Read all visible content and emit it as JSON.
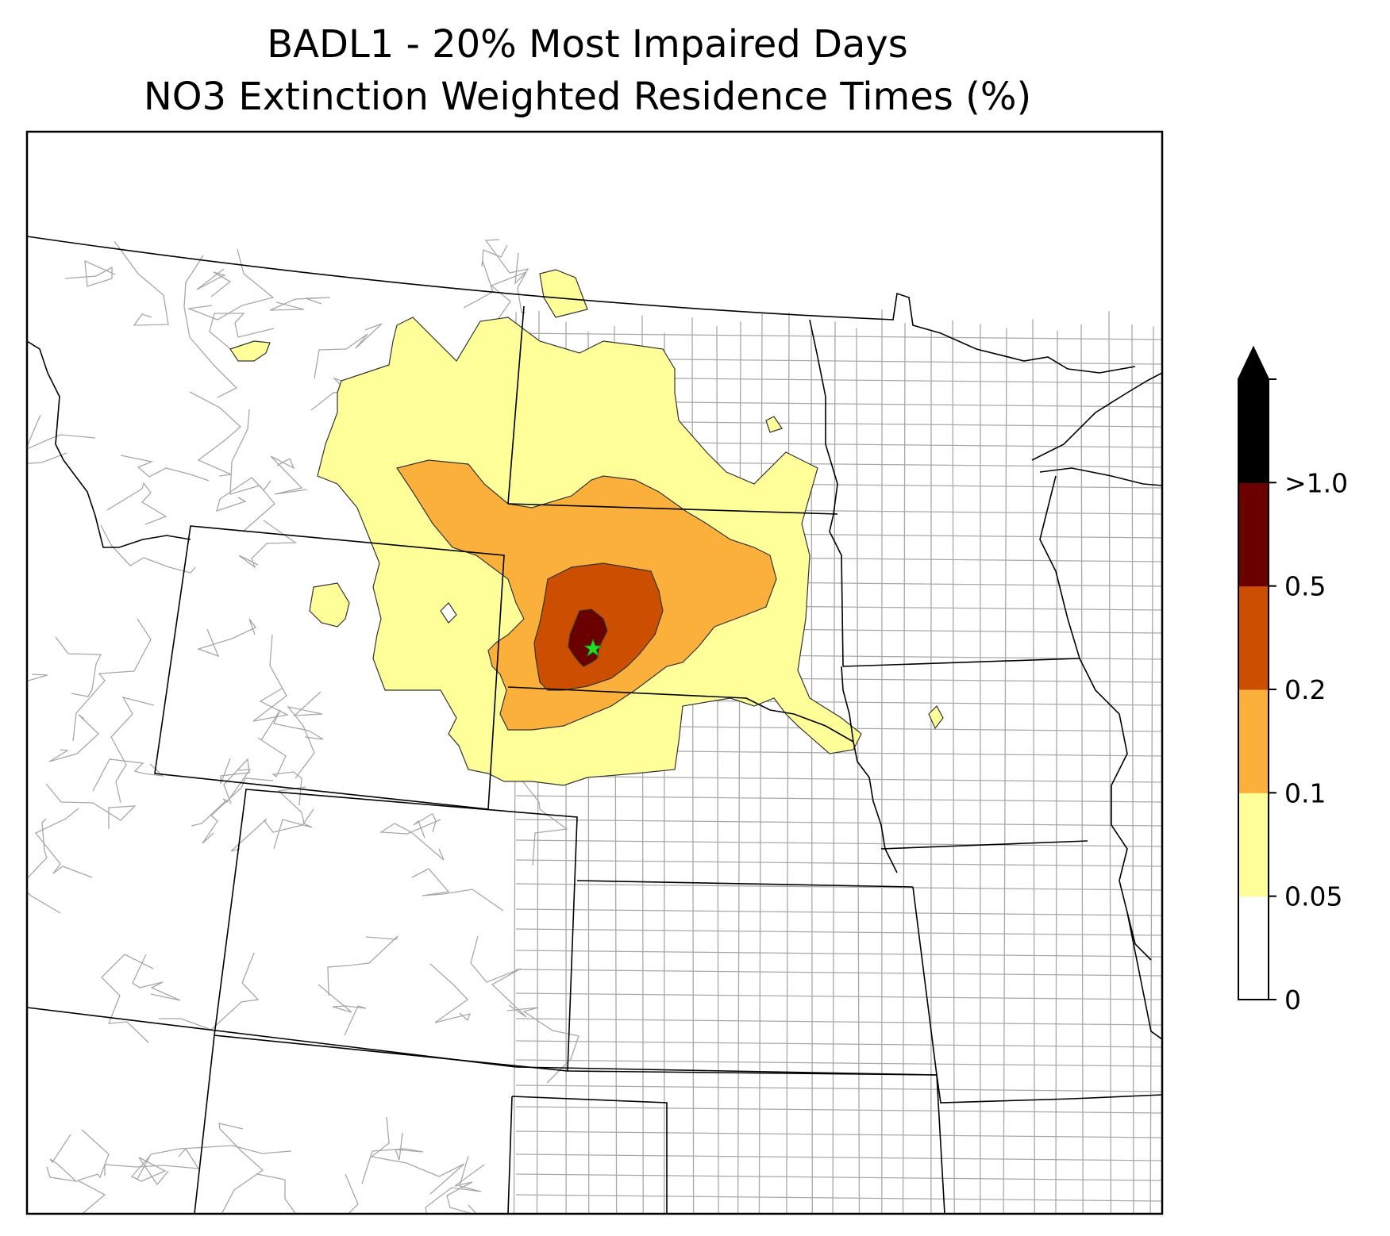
{
  "title": {
    "line1": "BADL1 - 20% Most Impaired Days",
    "line2": "NO3 Extinction Weighted Residence Times (%)"
  },
  "colorbar": {
    "levels": [
      "0",
      "0.05",
      "0.1",
      "0.2",
      "0.5",
      ">1.0"
    ],
    "colors": [
      "#ffffff",
      "#ffff99",
      "#fbb03b",
      "#cc4e00",
      "#6b0000",
      "#000000"
    ],
    "extend": "max"
  },
  "map": {
    "marker": {
      "name": "receptor-site",
      "color": "#22dd22",
      "shape": "star"
    },
    "contour_colors": {
      "level_0_05": "#ffff99",
      "level_0_1": "#fbb03b",
      "level_0_2": "#cc4e00",
      "level_0_5": "#6b0000"
    },
    "county_line_color": "#a8a8a8",
    "state_line_color": "#000000"
  }
}
